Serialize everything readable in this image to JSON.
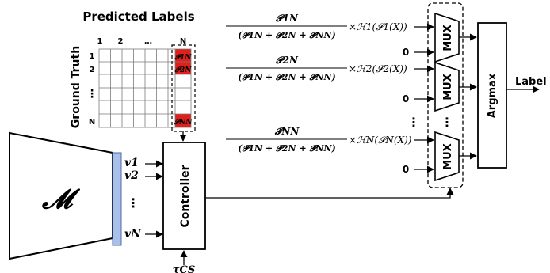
{
  "confusion_matrix": {
    "title": "Predicted Labels",
    "y_axis_label": "Ground Truth",
    "col_headers": [
      "1",
      "2",
      "…",
      "N"
    ],
    "row_headers": [
      "1",
      "2",
      "⋮",
      "N"
    ],
    "highlight_cells": [
      "𝓟1N",
      "𝓟2N",
      "𝓟NN"
    ],
    "highlight_color": "#e0201b"
  },
  "model": {
    "symbol": "𝓜",
    "outputs": [
      "v1",
      "v2",
      "⋮",
      "vN"
    ],
    "feature_bar_color": "#a9c1ea"
  },
  "controller": {
    "label": "Controller",
    "threshold_label": "τCS"
  },
  "branches": [
    {
      "numerator": "𝓟1N",
      "denominator": "(𝓟1N + 𝓟2N + 𝓟NN)",
      "term": "×ℋ1(𝓢1(X))",
      "zero": "0",
      "mux": "MUX"
    },
    {
      "numerator": "𝓟2N",
      "denominator": "(𝓟1N + 𝓟2N + 𝓟NN)",
      "term": "×ℋ2(𝓢2(X))",
      "zero": "0",
      "mux": "MUX"
    },
    {
      "numerator": "𝓟NN",
      "denominator": "(𝓟1N + 𝓟2N + 𝓟NN)",
      "term": "×ℋN(𝓢N(X))",
      "zero": "0",
      "mux": "MUX"
    }
  ],
  "vdots": "⋮",
  "argmax": {
    "label": "Argmax",
    "output_label": "Label"
  }
}
